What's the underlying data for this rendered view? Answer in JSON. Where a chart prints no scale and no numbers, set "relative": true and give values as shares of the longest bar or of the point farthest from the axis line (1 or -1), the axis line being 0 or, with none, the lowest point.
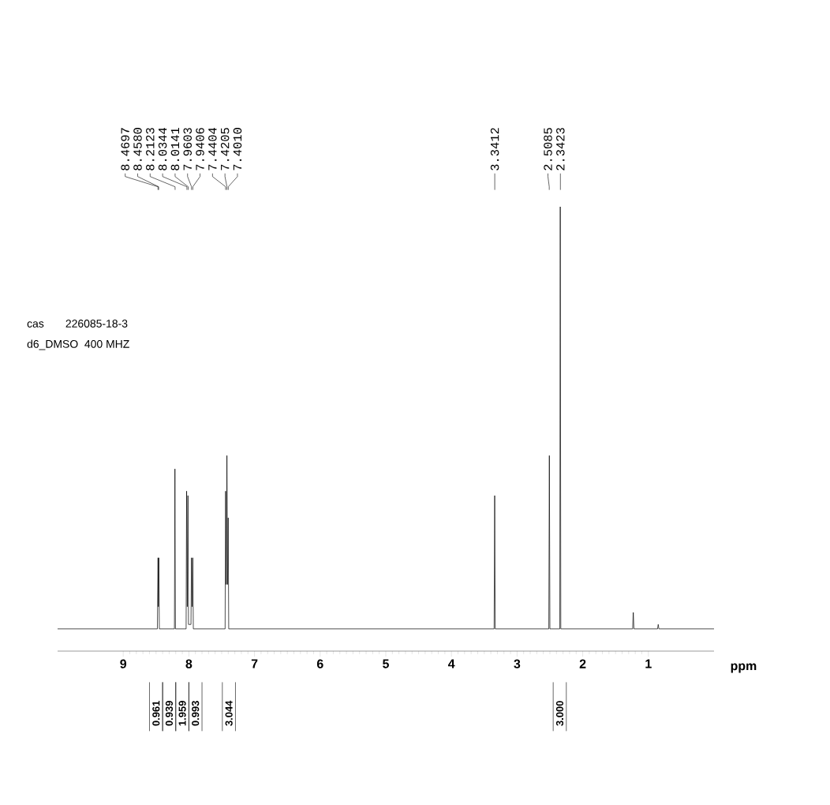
{
  "chart_data": {
    "type": "line",
    "relative": true,
    "xlabel": "ppm",
    "xlim": [
      10,
      0
    ],
    "xticks": [
      1,
      2,
      3,
      4,
      5,
      6,
      7,
      8,
      9
    ],
    "grid": false,
    "marker": "none",
    "line_style": "solid",
    "series": [
      {
        "color": "#000000",
        "x": [
          10,
          8.48,
          8.4697,
          8.464,
          8.458,
          8.45,
          8.22,
          8.2123,
          8.205,
          8.042,
          8.0344,
          8.024,
          8.0141,
          8.006,
          7.968,
          7.9603,
          7.95,
          7.9406,
          7.932,
          7.448,
          7.4404,
          7.43,
          7.4205,
          7.411,
          7.401,
          7.393,
          3.35,
          3.3412,
          3.333,
          2.517,
          2.5085,
          2.5,
          2.35,
          2.3423,
          2.334,
          1.24,
          1.23,
          1.22,
          0.86,
          0.85,
          0.84,
          0
        ],
        "values": [
          0.05,
          0.05,
          0.21,
          0.1,
          0.21,
          0.05,
          0.05,
          0.41,
          0.05,
          0.05,
          0.36,
          0.1,
          0.35,
          0.06,
          0.06,
          0.21,
          0.1,
          0.21,
          0.05,
          0.05,
          0.36,
          0.15,
          0.44,
          0.15,
          0.3,
          0.05,
          0.05,
          0.35,
          0.05,
          0.05,
          0.44,
          0.05,
          0.05,
          1.0,
          0.05,
          0.05,
          0.087,
          0.05,
          0.05,
          0.06,
          0.05,
          0.05
        ]
      }
    ],
    "annotations": [
      "8.4697",
      "8.4580",
      "8.2123",
      "8.0344",
      "8.0141",
      "7.9603",
      "7.9406",
      "7.4404",
      "7.4205",
      "7.4010",
      "3.3412",
      "2.5085",
      "2.3423",
      "0.961",
      "0.939",
      "1.959",
      "0.993",
      "3.044",
      "3.000",
      "cas       226085-18-3",
      "d6_DMSO  400 MHZ"
    ]
  }
}
